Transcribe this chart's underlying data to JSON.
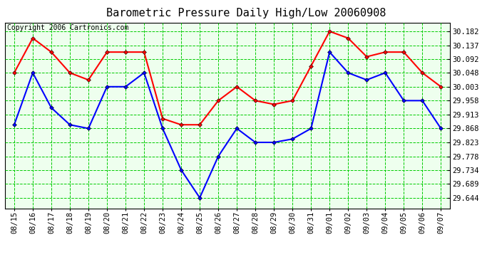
{
  "title": "Barometric Pressure Daily High/Low 20060908",
  "copyright": "Copyright 2006 Cartronics.com",
  "dates": [
    "08/15",
    "08/16",
    "08/17",
    "08/18",
    "08/19",
    "08/20",
    "08/21",
    "08/22",
    "08/23",
    "08/24",
    "08/25",
    "08/26",
    "08/27",
    "08/28",
    "08/29",
    "08/30",
    "08/31",
    "09/01",
    "09/02",
    "09/03",
    "09/04",
    "09/05",
    "09/06",
    "09/07"
  ],
  "high": [
    30.048,
    30.16,
    30.115,
    30.048,
    30.025,
    30.115,
    30.115,
    30.115,
    29.9,
    29.88,
    29.88,
    29.958,
    30.003,
    29.958,
    29.946,
    29.958,
    30.07,
    30.182,
    30.16,
    30.1,
    30.115,
    30.115,
    30.048,
    30.003
  ],
  "low": [
    29.88,
    30.048,
    29.935,
    29.88,
    29.868,
    30.003,
    30.003,
    30.048,
    29.868,
    29.734,
    29.644,
    29.778,
    29.868,
    29.823,
    29.823,
    29.834,
    29.868,
    30.115,
    30.048,
    30.025,
    30.048,
    29.958,
    29.958,
    29.868
  ],
  "yticks": [
    29.644,
    29.689,
    29.734,
    29.778,
    29.823,
    29.868,
    29.913,
    29.958,
    30.003,
    30.048,
    30.092,
    30.137,
    30.182
  ],
  "ytick_labels": [
    "29.644",
    "29.689",
    "29.734",
    "29.778",
    "29.823",
    "29.868",
    "29.913",
    "29.958",
    "30.003",
    "30.048",
    "30.092",
    "30.137",
    "30.182"
  ],
  "ymin": 29.61,
  "ymax": 30.21,
  "high_color": "#ff0000",
  "low_color": "#0000ff",
  "grid_color": "#00cc00",
  "bg_color": "#ffffff",
  "plot_bg_color": "#eeffee",
  "title_fontsize": 11,
  "copyright_fontsize": 7,
  "tick_fontsize": 7.5,
  "markersize": 3,
  "linewidth": 1.5
}
